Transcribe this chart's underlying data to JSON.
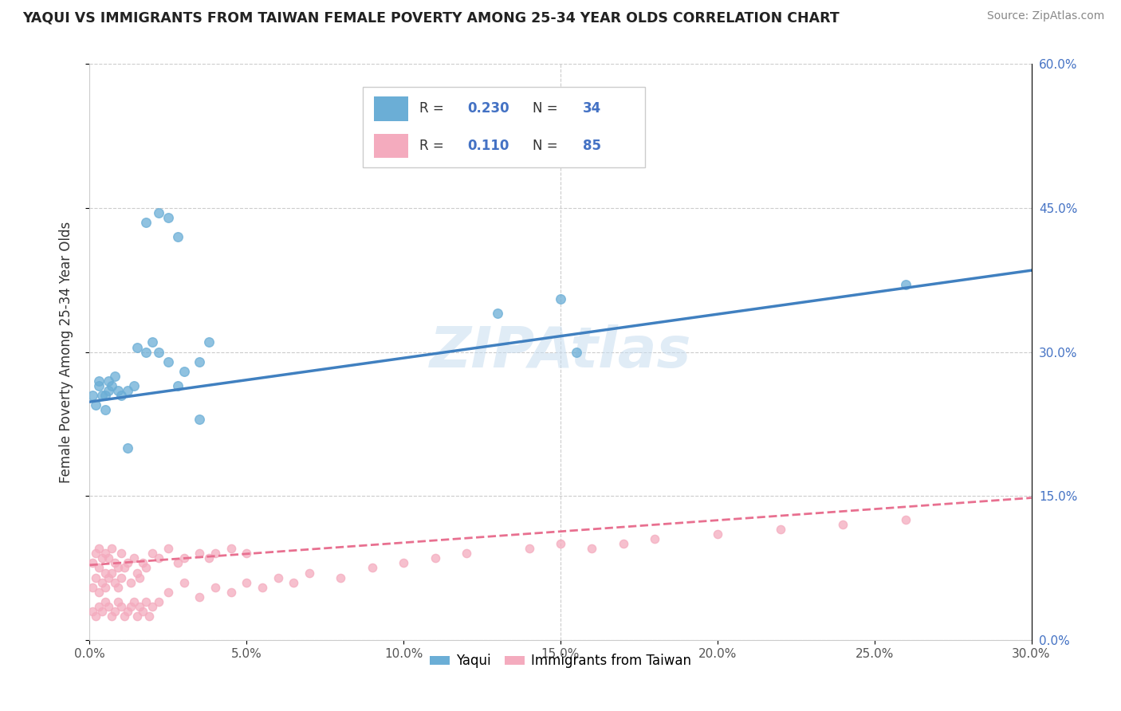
{
  "title": "YAQUI VS IMMIGRANTS FROM TAIWAN FEMALE POVERTY AMONG 25-34 YEAR OLDS CORRELATION CHART",
  "source": "Source: ZipAtlas.com",
  "ylabel": "Female Poverty Among 25-34 Year Olds",
  "xlim": [
    0,
    0.3
  ],
  "ylim": [
    0,
    0.6
  ],
  "xtick_vals": [
    0.0,
    0.05,
    0.1,
    0.15,
    0.2,
    0.25,
    0.3
  ],
  "xtick_labels": [
    "0.0%",
    "5.0%",
    "10.0%",
    "15.0%",
    "20.0%",
    "25.0%",
    "30.0%"
  ],
  "ytick_vals": [
    0.0,
    0.15,
    0.3,
    0.45,
    0.6
  ],
  "ytick_labels": [
    "0.0%",
    "15.0%",
    "30.0%",
    "45.0%",
    "60.0%"
  ],
  "yaqui_color": "#6BAED6",
  "taiwan_color": "#F4ABBE",
  "taiwan_line_color": "#E87090",
  "yaqui_line_color": "#4080C0",
  "yaqui_R": 0.23,
  "yaqui_N": 34,
  "taiwan_R": 0.11,
  "taiwan_N": 85,
  "legend_label_yaqui": "Yaqui",
  "legend_label_taiwan": "Immigrants from Taiwan",
  "watermark": "ZIPAtlas",
  "background_color": "#ffffff",
  "grid_color": "#cccccc",
  "yaqui_x": [
    0.001,
    0.002,
    0.003,
    0.003,
    0.004,
    0.005,
    0.005,
    0.006,
    0.006,
    0.007,
    0.008,
    0.009,
    0.01,
    0.012,
    0.014,
    0.015,
    0.018,
    0.02,
    0.022,
    0.025,
    0.028,
    0.03,
    0.035,
    0.038,
    0.018,
    0.022,
    0.025,
    0.028,
    0.15,
    0.13,
    0.035,
    0.012,
    0.155,
    0.26
  ],
  "yaqui_y": [
    0.255,
    0.245,
    0.27,
    0.265,
    0.255,
    0.24,
    0.255,
    0.26,
    0.27,
    0.265,
    0.275,
    0.26,
    0.255,
    0.26,
    0.265,
    0.305,
    0.3,
    0.31,
    0.3,
    0.29,
    0.265,
    0.28,
    0.29,
    0.31,
    0.435,
    0.445,
    0.44,
    0.42,
    0.355,
    0.34,
    0.23,
    0.2,
    0.3,
    0.37
  ],
  "taiwan_x": [
    0.001,
    0.001,
    0.002,
    0.002,
    0.003,
    0.003,
    0.003,
    0.004,
    0.004,
    0.005,
    0.005,
    0.005,
    0.006,
    0.006,
    0.007,
    0.007,
    0.008,
    0.008,
    0.009,
    0.009,
    0.01,
    0.01,
    0.011,
    0.012,
    0.013,
    0.014,
    0.015,
    0.016,
    0.017,
    0.018,
    0.02,
    0.022,
    0.025,
    0.028,
    0.03,
    0.035,
    0.038,
    0.04,
    0.045,
    0.05,
    0.001,
    0.002,
    0.003,
    0.004,
    0.005,
    0.006,
    0.007,
    0.008,
    0.009,
    0.01,
    0.011,
    0.012,
    0.013,
    0.014,
    0.015,
    0.016,
    0.017,
    0.018,
    0.019,
    0.02,
    0.022,
    0.025,
    0.03,
    0.035,
    0.04,
    0.045,
    0.05,
    0.055,
    0.06,
    0.065,
    0.07,
    0.08,
    0.09,
    0.1,
    0.11,
    0.12,
    0.14,
    0.15,
    0.16,
    0.17,
    0.18,
    0.2,
    0.22,
    0.24,
    0.26
  ],
  "taiwan_y": [
    0.055,
    0.08,
    0.065,
    0.09,
    0.05,
    0.075,
    0.095,
    0.06,
    0.085,
    0.07,
    0.055,
    0.09,
    0.065,
    0.085,
    0.07,
    0.095,
    0.06,
    0.08,
    0.055,
    0.075,
    0.065,
    0.09,
    0.075,
    0.08,
    0.06,
    0.085,
    0.07,
    0.065,
    0.08,
    0.075,
    0.09,
    0.085,
    0.095,
    0.08,
    0.085,
    0.09,
    0.085,
    0.09,
    0.095,
    0.09,
    0.03,
    0.025,
    0.035,
    0.03,
    0.04,
    0.035,
    0.025,
    0.03,
    0.04,
    0.035,
    0.025,
    0.03,
    0.035,
    0.04,
    0.025,
    0.035,
    0.03,
    0.04,
    0.025,
    0.035,
    0.04,
    0.05,
    0.06,
    0.045,
    0.055,
    0.05,
    0.06,
    0.055,
    0.065,
    0.06,
    0.07,
    0.065,
    0.075,
    0.08,
    0.085,
    0.09,
    0.095,
    0.1,
    0.095,
    0.1,
    0.105,
    0.11,
    0.115,
    0.12,
    0.125
  ],
  "yaqui_line_x0": 0.0,
  "yaqui_line_x1": 0.3,
  "yaqui_line_y0": 0.248,
  "yaqui_line_y1": 0.385,
  "taiwan_line_x0": 0.0,
  "taiwan_line_x1": 0.3,
  "taiwan_line_y0": 0.078,
  "taiwan_line_y1": 0.148
}
